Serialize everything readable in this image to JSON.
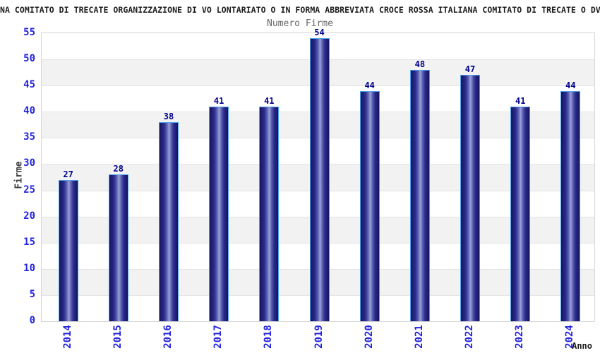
{
  "header": {
    "title": "NA COMITATO DI TRECATE ORGANIZZAZIONE DI VO LONTARIATO O IN FORMA ABBREVIATA CROCE ROSSA ITALIANA COMITATO DI TRECATE O DV",
    "subtitle": "Numero Firme"
  },
  "chart_data": {
    "type": "bar",
    "title": "Numero Firme",
    "categories": [
      "2014",
      "2015",
      "2016",
      "2017",
      "2018",
      "2019",
      "2020",
      "2021",
      "2022",
      "2023",
      "2024"
    ],
    "values": [
      27,
      28,
      38,
      41,
      41,
      54,
      44,
      48,
      47,
      41,
      44
    ],
    "xlabel": "Anno",
    "ylabel": "Firme",
    "ylim": [
      0,
      55
    ],
    "ytick_step": 5,
    "yticks": [
      0,
      5,
      10,
      15,
      20,
      25,
      30,
      35,
      40,
      45,
      50,
      55
    ],
    "grid": "alternating horizontal bands every 5 units, light gray on [50-45],[40-35],[30-25],[20-15],[10-5]",
    "legend_position": "none",
    "colors": {
      "bar_dark": "#13135a",
      "bar_highlight": "#9ba1d8",
      "bar_border": "#4da3f0",
      "tick_label": "#2424dd",
      "value_label": "#00008b",
      "band_gray": "#f2f2f2",
      "gridline": "#e4e4e4",
      "title": "#1c1c1c",
      "subtitle": "#666666",
      "axis_title": "#3c3c3c"
    }
  }
}
